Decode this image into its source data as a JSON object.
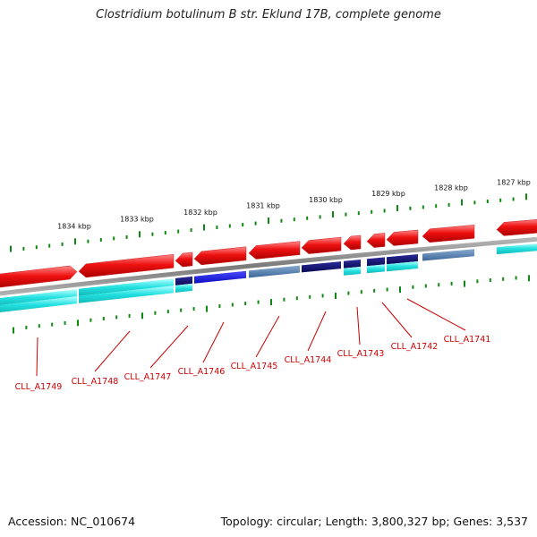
{
  "title": "Clostridium botulinum B str. Eklund 17B, complete genome",
  "accession": "Accession: NC_010674",
  "summary": "Topology: circular; Length: 3,800,327 bp; Genes: 3,537",
  "kbp_labels": [
    "1834 kbp",
    "1833 kbp",
    "1832 kbp",
    "1831 kbp",
    "1830 kbp",
    "1829 kbp",
    "1828 kbp",
    "1827 kbp"
  ],
  "gene_labels": [
    "CLL_A1749",
    "CLL_A1748",
    "CLL_A1747",
    "CLL_A1746",
    "CLL_A1745",
    "CLL_A1744",
    "CLL_A1743",
    "CLL_A1742",
    "CLL_A1741"
  ],
  "colors": {
    "gene_red": "#ee1111",
    "tick_green": "#118811",
    "label_red": "#cc0000",
    "cyan": "#22dddd",
    "blue": "#1111dd",
    "navy": "#111177",
    "steel": "#4477aa",
    "backbone": "#888888"
  }
}
